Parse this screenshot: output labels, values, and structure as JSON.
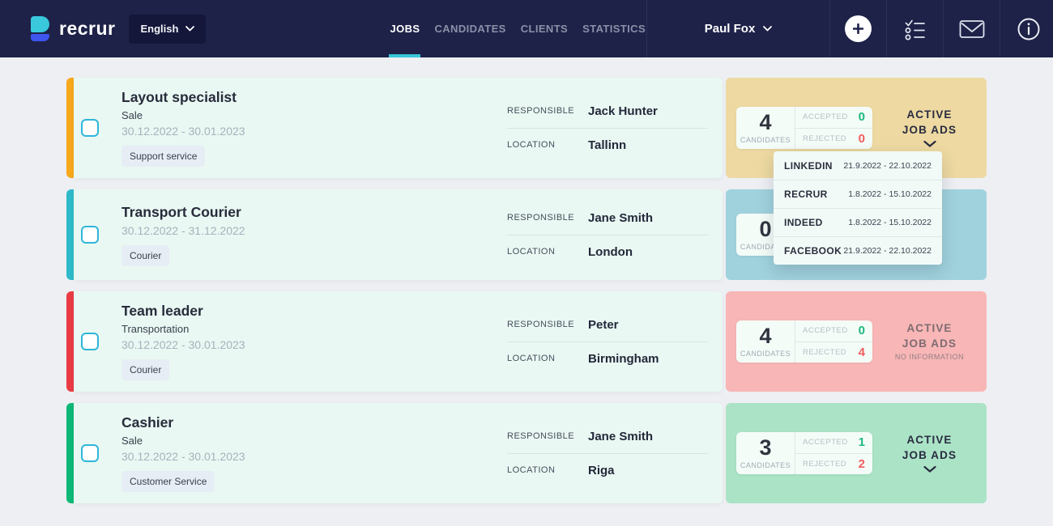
{
  "header": {
    "brand": "recrur",
    "language": {
      "label": "English"
    },
    "nav": [
      {
        "label": "JOBS",
        "active": true
      },
      {
        "label": "CANDIDATES",
        "active": false
      },
      {
        "label": "CLIENTS",
        "active": false
      },
      {
        "label": "STATISTICS",
        "active": false
      }
    ],
    "user": {
      "name": "Paul Fox"
    }
  },
  "labels": {
    "responsible": "RESPONSIBLE",
    "location": "LOCATION",
    "candidates": "CANDIDATES",
    "accepted": "ACCEPTED",
    "rejected": "REJECTED",
    "ads_line1": "ACTIVE",
    "ads_line2": "JOB ADS",
    "no_information": "NO INFORMATION"
  },
  "colors": {
    "header_bg": "#1E2248",
    "accent_cyan": "#35C6D9",
    "green_value": "#1CB97E",
    "red_value": "#F15B5B"
  },
  "jobs": [
    {
      "title": "Layout specialist",
      "department": "Sale",
      "dates": "30.12.2022 - 30.01.2023",
      "tag": "Support service",
      "responsible": "Jack Hunter",
      "location": "Tallinn",
      "candidates": "4",
      "accepted": "0",
      "rejected": "0",
      "ads_style": "chevron",
      "accent_color": "#F7A81B",
      "panel_color": "#EDD9A1"
    },
    {
      "title": "Transport Courier",
      "department": "",
      "dates": "30.12.2022 - 31.12.2022",
      "tag": "Courier",
      "responsible": "Jane Smith",
      "location": "London",
      "candidates": "0",
      "accepted": "",
      "rejected": "",
      "ads_style": "hidden",
      "accent_color": "#2FBAC9",
      "panel_color": "#A0D2DD"
    },
    {
      "title": "Team leader",
      "department": "Transportation",
      "dates": "30.12.2022 - 30.01.2023",
      "tag": "Courier",
      "responsible": "Peter",
      "location": "Birmingham",
      "candidates": "4",
      "accepted": "0",
      "rejected": "4",
      "ads_style": "no_info",
      "accent_color": "#EA3B44",
      "panel_color": "#F8B6B6"
    },
    {
      "title": "Cashier",
      "department": "Sale",
      "dates": "30.12.2022 - 30.01.2023",
      "tag": "Customer Service",
      "responsible": "Jane Smith",
      "location": "Riga",
      "candidates": "3",
      "accepted": "1",
      "rejected": "2",
      "ads_style": "chevron",
      "accent_color": "#0EB876",
      "panel_color": "#ABE3C6"
    }
  ],
  "dropdown": {
    "items": [
      {
        "name": "LINKEDIN",
        "dates": "21.9.2022 - 22.10.2022"
      },
      {
        "name": "RECRUR",
        "dates": "1.8.2022 - 15.10.2022"
      },
      {
        "name": "INDEED",
        "dates": "1.8.2022 - 15.10.2022"
      },
      {
        "name": "FACEBOOK",
        "dates": "21.9.2022 - 22.10.2022"
      }
    ]
  }
}
